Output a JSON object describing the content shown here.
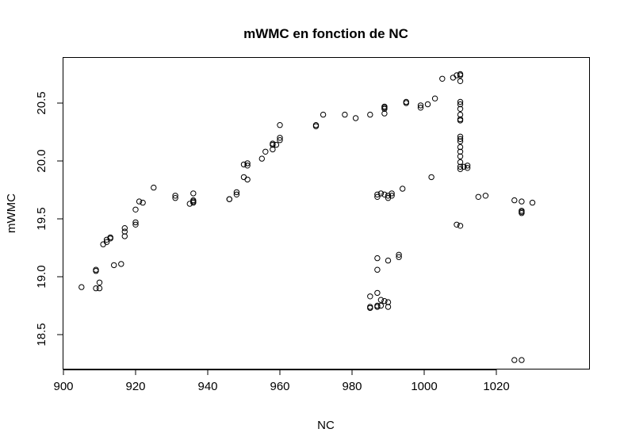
{
  "chart_data": {
    "type": "scatter",
    "title": "mWMC en fonction de NC",
    "xlabel": "NC",
    "ylabel": "mWMC",
    "xlim": [
      900,
      1030
    ],
    "ylim": [
      18.5,
      20.5
    ],
    "x_ticks": [
      "900",
      "920",
      "940",
      "960",
      "980",
      "1000",
      "1020"
    ],
    "y_ticks": [
      "18.5",
      "19.0",
      "19.5",
      "20.0",
      "20.5"
    ],
    "grid": false,
    "legend": "none",
    "marker": "open-circle",
    "points": [
      [
        905,
        18.91
      ],
      [
        909,
        19.05
      ],
      [
        909,
        19.06
      ],
      [
        909,
        18.9
      ],
      [
        910,
        18.95
      ],
      [
        910,
        18.9
      ],
      [
        911,
        19.28
      ],
      [
        912,
        19.3
      ],
      [
        912,
        19.32
      ],
      [
        913,
        19.33
      ],
      [
        913,
        19.34
      ],
      [
        914,
        19.1
      ],
      [
        916,
        19.11
      ],
      [
        917,
        19.35
      ],
      [
        917,
        19.39
      ],
      [
        917,
        19.42
      ],
      [
        920,
        19.45
      ],
      [
        920,
        19.47
      ],
      [
        920,
        19.58
      ],
      [
        921,
        19.65
      ],
      [
        922,
        19.64
      ],
      [
        925,
        19.77
      ],
      [
        931,
        19.7
      ],
      [
        931,
        19.68
      ],
      [
        935,
        19.63
      ],
      [
        936,
        19.72
      ],
      [
        936,
        19.64
      ],
      [
        936,
        19.65
      ],
      [
        936,
        19.66
      ],
      [
        946,
        19.67
      ],
      [
        946,
        19.67
      ],
      [
        948,
        19.73
      ],
      [
        948,
        19.71
      ],
      [
        950,
        19.86
      ],
      [
        950,
        19.97
      ],
      [
        951,
        19.98
      ],
      [
        951,
        19.84
      ],
      [
        951,
        19.96
      ],
      [
        955,
        20.02
      ],
      [
        956,
        20.08
      ],
      [
        958,
        20.1
      ],
      [
        958,
        20.14
      ],
      [
        958,
        20.15
      ],
      [
        959,
        20.14
      ],
      [
        960,
        20.18
      ],
      [
        960,
        20.2
      ],
      [
        960,
        20.31
      ],
      [
        970,
        20.3
      ],
      [
        970,
        20.31
      ],
      [
        972,
        20.4
      ],
      [
        978,
        20.4
      ],
      [
        981,
        20.37
      ],
      [
        985,
        20.4
      ],
      [
        985,
        18.83
      ],
      [
        985,
        18.74
      ],
      [
        985,
        18.73
      ],
      [
        987,
        19.71
      ],
      [
        987,
        19.69
      ],
      [
        987,
        19.16
      ],
      [
        987,
        19.06
      ],
      [
        987,
        18.86
      ],
      [
        987,
        18.75
      ],
      [
        987,
        18.74
      ],
      [
        988,
        19.72
      ],
      [
        988,
        18.8
      ],
      [
        988,
        18.75
      ],
      [
        989,
        19.71
      ],
      [
        989,
        20.41
      ],
      [
        989,
        20.45
      ],
      [
        989,
        20.46
      ],
      [
        989,
        20.47
      ],
      [
        989,
        18.79
      ],
      [
        990,
        19.7
      ],
      [
        990,
        19.68
      ],
      [
        990,
        19.14
      ],
      [
        990,
        18.78
      ],
      [
        990,
        18.74
      ],
      [
        991,
        19.72
      ],
      [
        991,
        19.7
      ],
      [
        993,
        19.19
      ],
      [
        993,
        19.17
      ],
      [
        994,
        19.76
      ],
      [
        995,
        20.5
      ],
      [
        995,
        20.51
      ],
      [
        999,
        20.46
      ],
      [
        999,
        20.48
      ],
      [
        1001,
        20.49
      ],
      [
        1002,
        19.86
      ],
      [
        1003,
        20.54
      ],
      [
        1005,
        20.71
      ],
      [
        1008,
        20.72
      ],
      [
        1009,
        20.74
      ],
      [
        1009,
        19.45
      ],
      [
        1010,
        20.75
      ],
      [
        1010,
        20.74
      ],
      [
        1010,
        20.69
      ],
      [
        1010,
        20.51
      ],
      [
        1010,
        20.49
      ],
      [
        1010,
        20.45
      ],
      [
        1010,
        20.4
      ],
      [
        1010,
        20.36
      ],
      [
        1010,
        20.35
      ],
      [
        1010,
        20.21
      ],
      [
        1010,
        20.19
      ],
      [
        1010,
        20.17
      ],
      [
        1010,
        20.12
      ],
      [
        1010,
        20.08
      ],
      [
        1010,
        20.04
      ],
      [
        1010,
        19.99
      ],
      [
        1010,
        19.95
      ],
      [
        1010,
        19.93
      ],
      [
        1010,
        19.44
      ],
      [
        1011,
        19.95
      ],
      [
        1012,
        19.96
      ],
      [
        1012,
        19.94
      ],
      [
        1015,
        19.69
      ],
      [
        1017,
        19.7
      ],
      [
        1025,
        19.66
      ],
      [
        1025,
        18.28
      ],
      [
        1027,
        19.65
      ],
      [
        1027,
        19.57
      ],
      [
        1027,
        19.56
      ],
      [
        1027,
        19.55
      ],
      [
        1027,
        18.28
      ],
      [
        1030,
        19.64
      ]
    ]
  }
}
